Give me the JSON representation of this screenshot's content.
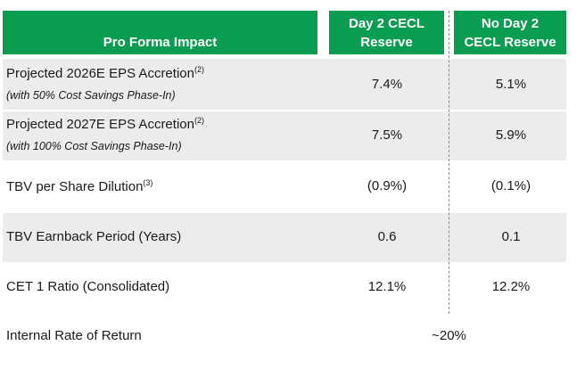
{
  "header": {
    "label": "Pro Forma Impact",
    "col1_line1": "Day 2 CECL",
    "col1_line2": "Reserve",
    "col2_line1": "No Day 2",
    "col2_line2": "CECL Reserve"
  },
  "rows": [
    {
      "label": "Projected 2026E EPS Accretion",
      "note": "(2)",
      "sub": "(with 50% Cost Savings Phase-In)",
      "v1": "7.4%",
      "v2": "5.1%"
    },
    {
      "label": "Projected 2027E EPS Accretion",
      "note": "(2)",
      "sub": "(with 100% Cost Savings Phase-In)",
      "v1": "7.5%",
      "v2": "5.9%"
    },
    {
      "label": "TBV per Share Dilution",
      "note": "(3)",
      "v1": "(0.9%)",
      "v2": "(0.1%)"
    },
    {
      "label": "TBV Earnback Period (Years)",
      "v1": "0.6",
      "v2": "0.1"
    },
    {
      "label": "CET 1 Ratio (Consolidated)",
      "v1": "12.1%",
      "v2": "12.2%"
    }
  ],
  "irr": {
    "label": "Internal Rate of Return",
    "value": "~20%"
  }
}
